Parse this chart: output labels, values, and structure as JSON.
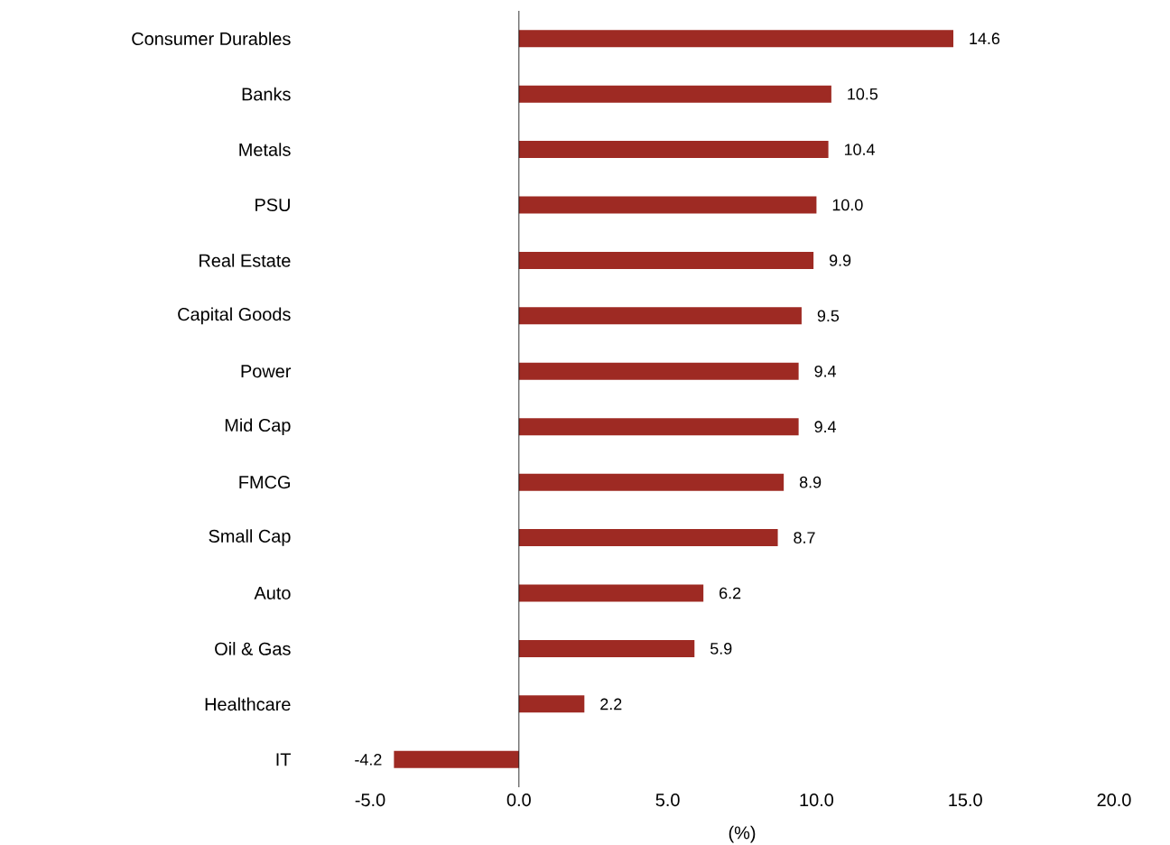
{
  "chart_data": {
    "type": "bar",
    "orientation": "horizontal",
    "xlabel": "(%)",
    "categories": [
      "Consumer Durables",
      "Banks",
      "Metals",
      "PSU",
      "Real Estate",
      "Capital Goods",
      "Power",
      "Mid Cap",
      "FMCG",
      "Small Cap",
      "Auto",
      "Oil & Gas",
      "Healthcare",
      "IT"
    ],
    "values": [
      14.6,
      10.5,
      10.4,
      10.0,
      9.9,
      9.5,
      9.4,
      9.4,
      8.9,
      8.7,
      6.2,
      5.9,
      2.2,
      -4.2
    ],
    "value_labels": [
      "14.6",
      "10.5",
      "10.4",
      "10.0",
      "9.9",
      "9.5",
      "9.4",
      "9.4",
      "8.9",
      "8.7",
      "6.2",
      "5.9",
      "2.2",
      "-4.2"
    ],
    "color": "#9e2a23",
    "xlim": [
      -5,
      20
    ],
    "xticks": [
      {
        "value": -5,
        "label": "-5.0"
      },
      {
        "value": 0,
        "label": "0.0"
      },
      {
        "value": 5,
        "label": "5.0"
      },
      {
        "value": 10,
        "label": "10.0"
      },
      {
        "value": 15,
        "label": "15.0"
      },
      {
        "value": 20,
        "label": "20.0"
      }
    ],
    "ref_lines": [
      {
        "axis": "x",
        "value": 0
      }
    ]
  }
}
